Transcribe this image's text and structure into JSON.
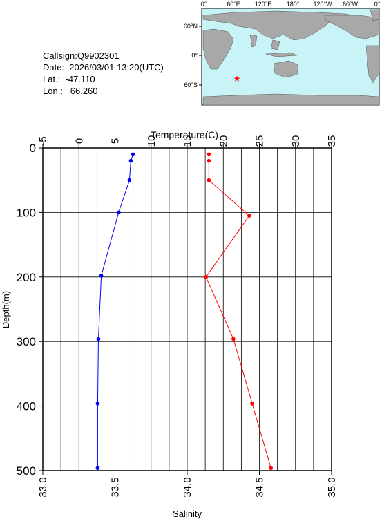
{
  "station": {
    "callsign": "Callsign:Q9902301",
    "date": "Date:  2026/03/01 13:20(UTC)",
    "lat": "Lat.:  -47.110",
    "lon": "Lon.:   66.260"
  },
  "map": {
    "top_labels": [
      "0°",
      "60°E",
      "120°E",
      "180°",
      "120°W",
      "60°W",
      "0°"
    ],
    "left_labels": [
      "60°N",
      "0°",
      "60°S"
    ],
    "ocean_color": "#c8f4f8",
    "land_color": "#a8a8a8",
    "marker": "red-star",
    "marker_color": "#ff0000"
  },
  "chart_data": {
    "type": "line",
    "x_top_label": "Temperature(C)",
    "x_top_ticks": [
      "-5",
      "0",
      "5",
      "10",
      "15",
      "20",
      "25",
      "30",
      "35"
    ],
    "x_top_range": [
      -5,
      35
    ],
    "x_bottom_label": "Salinity",
    "x_bottom_ticks": [
      "33.0",
      "33.5",
      "34.0",
      "34.5",
      "35.0"
    ],
    "x_bottom_range": [
      33.0,
      35.0
    ],
    "ylabel": "Depth(m)",
    "y_ticks": [
      "0",
      "100",
      "200",
      "300",
      "400",
      "500"
    ],
    "y_range": [
      0,
      500
    ],
    "grid": true,
    "series": [
      {
        "axis": "temperature",
        "color": "#0000ff",
        "points": [
          [
            7.5,
            10
          ],
          [
            7.2,
            20
          ],
          [
            7.0,
            50
          ],
          [
            5.5,
            100
          ],
          [
            3.1,
            198
          ],
          [
            2.7,
            296
          ],
          [
            2.6,
            396
          ],
          [
            2.6,
            496
          ]
        ]
      },
      {
        "axis": "salinity",
        "color": "#ff0000",
        "points": [
          [
            34.15,
            10
          ],
          [
            34.15,
            20
          ],
          [
            34.15,
            50
          ],
          [
            34.43,
            105
          ],
          [
            34.13,
            200
          ],
          [
            34.32,
            296
          ],
          [
            34.45,
            396
          ],
          [
            34.58,
            496
          ]
        ]
      }
    ]
  }
}
